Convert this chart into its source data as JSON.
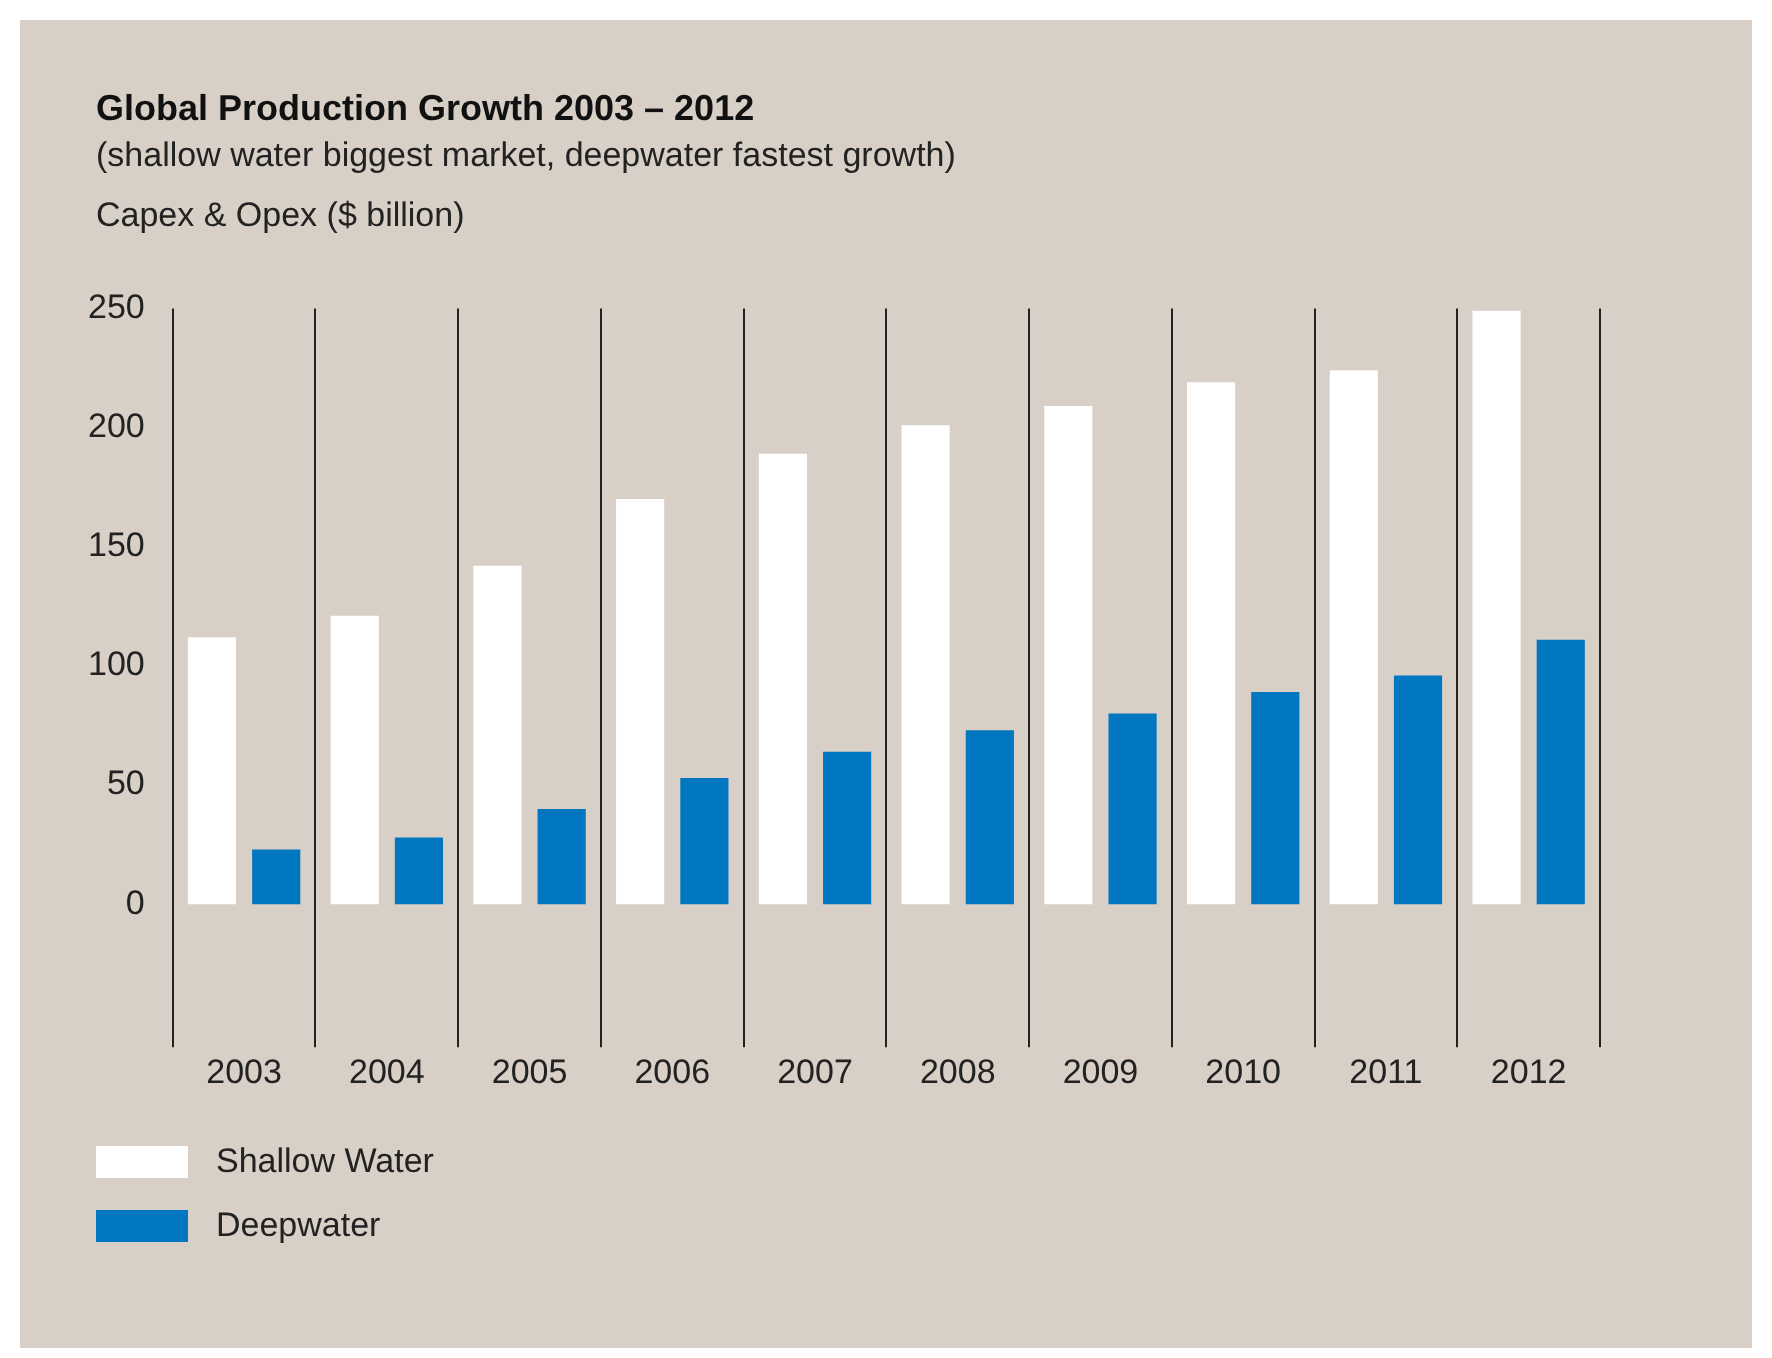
{
  "chart_data": {
    "type": "bar",
    "title": "Global Production Growth 2003 – 2012",
    "subtitle": "(shallow water biggest market, deepwater fastest growth)",
    "ylabel": "Capex & Opex ($ billion)",
    "categories": [
      "2003",
      "2004",
      "2005",
      "2006",
      "2007",
      "2008",
      "2009",
      "2010",
      "2011",
      "2012"
    ],
    "series": [
      {
        "name": "Shallow Water",
        "color": "#ffffff",
        "values": [
          112,
          121,
          142,
          170,
          189,
          201,
          209,
          219,
          224,
          249
        ]
      },
      {
        "name": "Deepwater",
        "color": "#0077c0",
        "values": [
          23,
          28,
          40,
          53,
          64,
          73,
          80,
          89,
          96,
          111
        ]
      }
    ],
    "ylim": [
      -60,
      250
    ],
    "yticks": [
      0,
      50,
      100,
      150,
      200,
      250
    ],
    "grid": "x",
    "legend": "bottom left"
  }
}
